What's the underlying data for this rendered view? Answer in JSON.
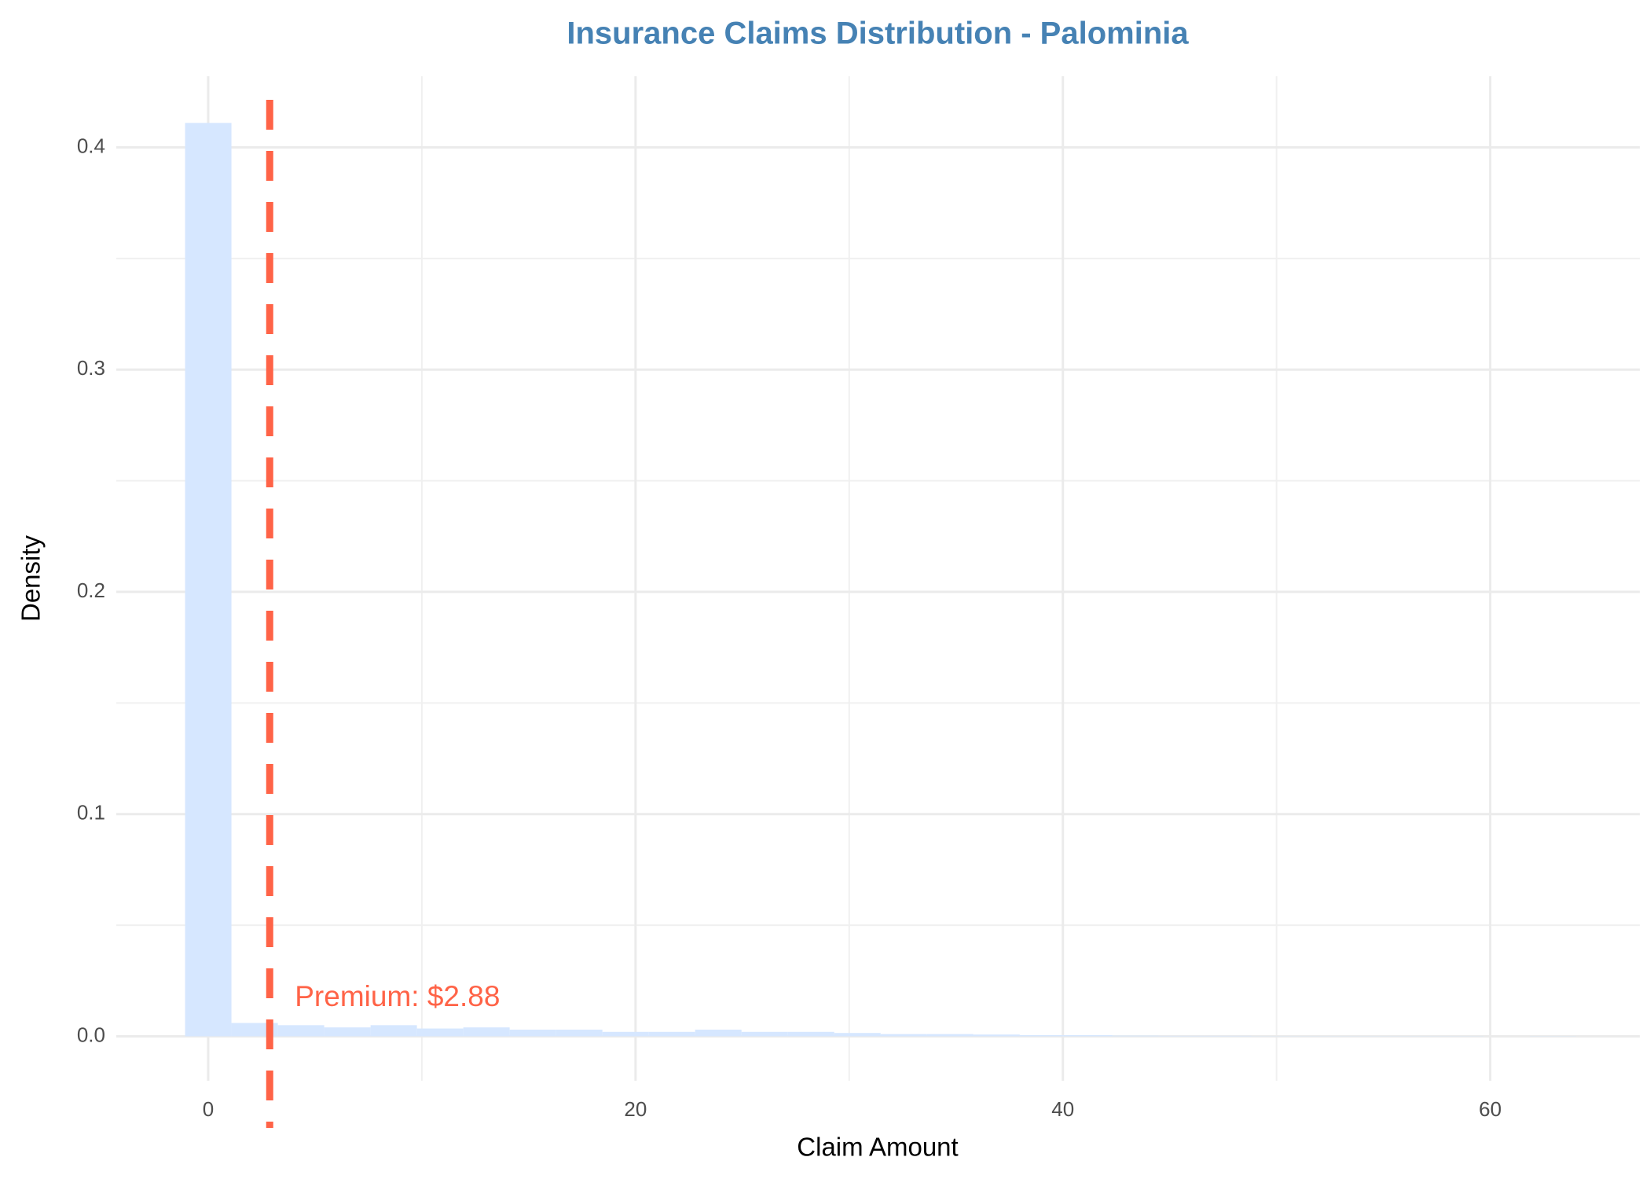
{
  "chart_data": {
    "type": "histogram",
    "title": "Insurance Claims Distribution - Palominia",
    "x_label": "Claim Amount",
    "y_label": "Density",
    "bins": [
      -1.08,
      1.09,
      3.26,
      5.43,
      7.6,
      9.77,
      11.94,
      14.11,
      16.28,
      18.45,
      20.62,
      22.79,
      24.96,
      27.13,
      29.3,
      31.47,
      33.64,
      35.81,
      37.98,
      40.15,
      42.32,
      44.49,
      46.66,
      48.83,
      51.0,
      53.17,
      55.34,
      57.51,
      59.68,
      61.85,
      64.02
    ],
    "counts": [
      0.411,
      0.006,
      0.005,
      0.004,
      0.005,
      0.0035,
      0.004,
      0.003,
      0.003,
      0.002,
      0.002,
      0.003,
      0.002,
      0.002,
      0.0015,
      0.001,
      0.001,
      0.0008,
      0.0005,
      0.0005,
      0.0003,
      0.0002,
      0.0002,
      0.0001,
      0.0001,
      0.0001,
      0.0001,
      0.0001,
      0,
      0.0001
    ],
    "color": "#d6e7ff",
    "premium": 2.88,
    "premium_label": "Premium: $2.88",
    "premium_color": "#ff6347",
    "xlim": [
      -4.3,
      67
    ],
    "ylim": [
      -0.02,
      0.432
    ],
    "xticks": [
      0,
      20,
      40,
      60
    ],
    "minor_xticks": [
      10,
      30,
      50
    ],
    "yticks": [
      {
        "value": 0,
        "label": "0.0"
      },
      {
        "value": 0.1,
        "label": "0.1"
      },
      {
        "value": 0.2,
        "label": "0.2"
      },
      {
        "value": 0.3,
        "label": "0.3"
      },
      {
        "value": 0.4,
        "label": "0.4"
      }
    ],
    "minor_yticks": [
      0.05,
      0.15,
      0.25,
      0.35
    ],
    "grid": true
  }
}
